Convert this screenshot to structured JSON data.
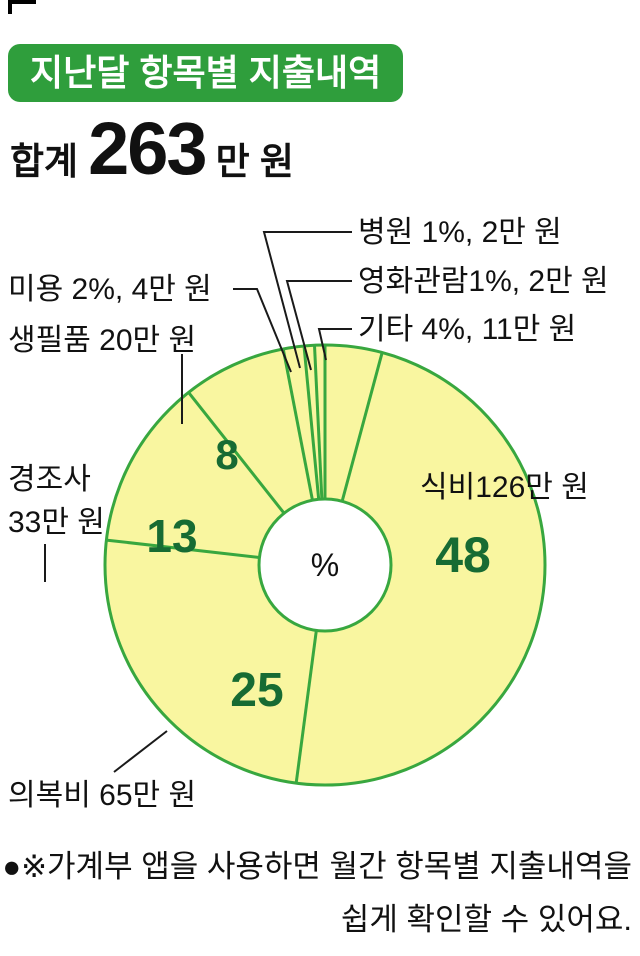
{
  "header": {
    "title": "지난달 항목별 지출내역"
  },
  "total": {
    "label": "합계",
    "value": "263",
    "unit": "만 원"
  },
  "colors": {
    "accent_green": "#2f9e3c",
    "chart_stroke": "#38a73f",
    "chart_fill": "#f9f6a0",
    "number_green": "#176b33",
    "text": "#111111"
  },
  "footnote": {
    "line1": "●※가계부 앱을 사용하면 월간 항목별 지출내역을",
    "line2": "쉽게 확인할 수 있어요."
  },
  "chart_data": {
    "type": "pie",
    "title": "지난달 항목별 지출내역",
    "total_value": 263,
    "unit": "만 원",
    "center_label": "%",
    "start_angle_deg": 0,
    "clockwise": true,
    "legend_position": "none",
    "segments": [
      {
        "name": "기타",
        "value": 11,
        "percent": 4,
        "label": "기타 4%, 11만 원"
      },
      {
        "name": "식비",
        "value": 126,
        "percent": 48,
        "label": "식비126만 원",
        "percent_label": "48"
      },
      {
        "name": "의복비",
        "value": 65,
        "percent": 25,
        "label": "의복비 65만 원",
        "percent_label": "25"
      },
      {
        "name": "경조사",
        "value": 33,
        "percent": 13,
        "label_line1": "경조사",
        "label_line2": "33만 원",
        "percent_label": "13"
      },
      {
        "name": "생필품",
        "value": 20,
        "percent": 8,
        "label": "생필품 20만 원",
        "percent_label": "8"
      },
      {
        "name": "미용",
        "value": 4,
        "percent": 2,
        "label": "미용 2%, 4만 원"
      },
      {
        "name": "병원",
        "value": 2,
        "percent": 1,
        "label": "병원 1%, 2만 원"
      },
      {
        "name": "영화관람",
        "value": 2,
        "percent": 1,
        "label": "영화관람1%, 2만 원"
      }
    ]
  }
}
